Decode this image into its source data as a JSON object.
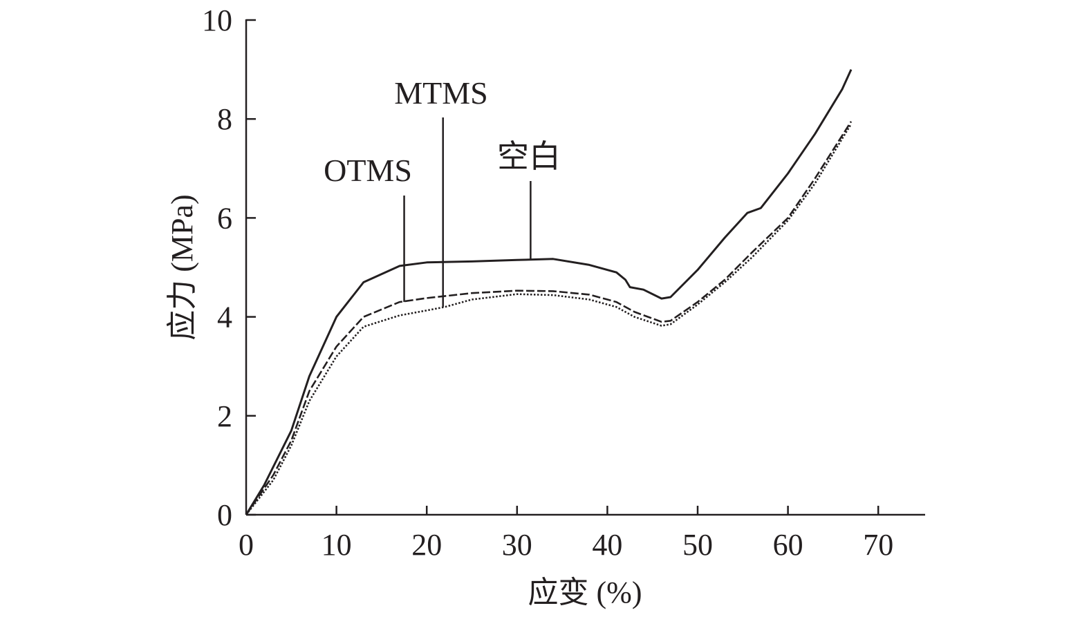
{
  "chart_data": {
    "type": "line",
    "title": "",
    "xlabel": "应变 (%)",
    "ylabel": "应力 (MPa)",
    "xlim": [
      0,
      75
    ],
    "ylim": [
      0,
      10
    ],
    "xticks": [
      "0",
      "10",
      "20",
      "30",
      "40",
      "50",
      "60",
      "70"
    ],
    "yticks": [
      "0",
      "2",
      "4",
      "6",
      "8",
      "10"
    ],
    "grid": false,
    "series": [
      {
        "name": "空白",
        "style": "solid",
        "x": [
          0,
          2,
          5,
          7,
          10,
          13,
          17,
          20,
          25,
          30,
          34,
          38,
          41,
          42,
          42.5,
          44,
          46,
          47,
          50,
          53,
          55.5,
          57,
          60,
          63,
          66,
          67
        ],
        "y": [
          0,
          0.6,
          1.7,
          2.8,
          4.0,
          4.7,
          5.03,
          5.1,
          5.12,
          5.15,
          5.17,
          5.05,
          4.9,
          4.75,
          4.6,
          4.55,
          4.37,
          4.4,
          4.95,
          5.6,
          6.1,
          6.2,
          6.9,
          7.7,
          8.6,
          9.0
        ]
      },
      {
        "name": "OTMS",
        "style": "dashed",
        "x": [
          0,
          3,
          5,
          7,
          10,
          13,
          17,
          20,
          25,
          30,
          34,
          38,
          41,
          43,
          46,
          47,
          50,
          53,
          56,
          60,
          63,
          67
        ],
        "y": [
          0,
          0.8,
          1.5,
          2.5,
          3.4,
          4.0,
          4.3,
          4.38,
          4.48,
          4.53,
          4.52,
          4.45,
          4.3,
          4.1,
          3.9,
          3.92,
          4.3,
          4.75,
          5.3,
          6.0,
          6.8,
          7.95
        ]
      },
      {
        "name": "MTMS",
        "style": "dotted",
        "x": [
          0,
          3,
          5,
          7,
          10,
          13,
          17,
          20,
          22,
          25,
          30,
          34,
          38,
          41,
          43,
          46,
          47,
          50,
          53,
          56,
          60,
          63,
          67
        ],
        "y": [
          0,
          0.7,
          1.4,
          2.3,
          3.2,
          3.8,
          4.03,
          4.13,
          4.2,
          4.35,
          4.46,
          4.44,
          4.35,
          4.2,
          4.0,
          3.82,
          3.85,
          4.25,
          4.7,
          5.2,
          5.95,
          6.7,
          7.9
        ]
      }
    ],
    "annotations": [
      {
        "text": "OTMS",
        "x": 17.5,
        "y": 4.3
      },
      {
        "text": "MTMS",
        "x": 21.8,
        "y": 4.2
      },
      {
        "text": "空白",
        "x": 31.5,
        "y": 5.15
      }
    ]
  }
}
